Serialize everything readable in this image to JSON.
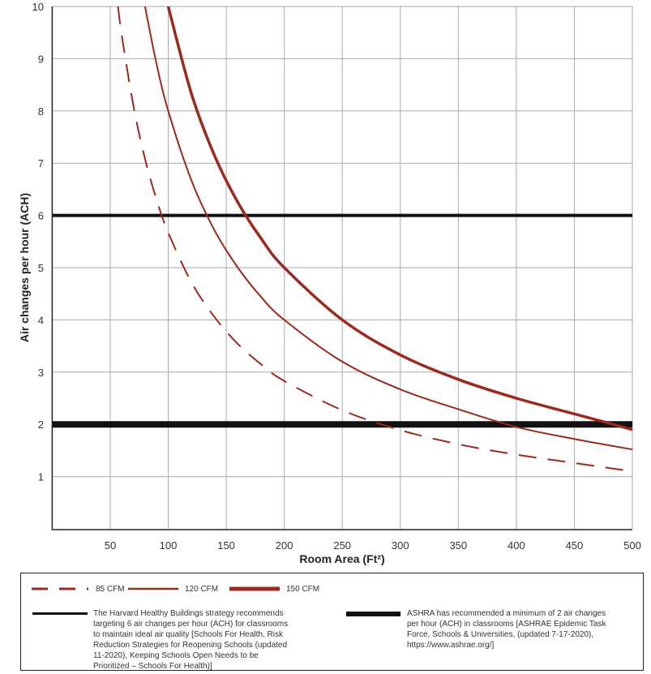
{
  "chart_data": {
    "type": "line",
    "xlabel": "Room Area (Ft²)",
    "ylabel": "Air changes per hour (ACH)",
    "xlim": [
      0,
      500
    ],
    "ylim": [
      0,
      10
    ],
    "xticks": [
      50,
      100,
      150,
      200,
      250,
      300,
      350,
      400,
      450,
      500
    ],
    "yticks": [
      1,
      2,
      3,
      4,
      5,
      6,
      7,
      8,
      9,
      10
    ],
    "grid": true,
    "series": [
      {
        "name": "85 CFM",
        "style": "dashed",
        "color": "#9b2a1e",
        "x": [
          56.7,
          60,
          70,
          80,
          90,
          100,
          120,
          140,
          160,
          180,
          200,
          250,
          300,
          350,
          400,
          450,
          500
        ],
        "y": [
          10,
          9.44,
          8.1,
          7.08,
          6.3,
          5.67,
          4.72,
          4.05,
          3.54,
          3.15,
          2.83,
          2.27,
          1.89,
          1.62,
          1.42,
          1.26,
          1.1
        ]
      },
      {
        "name": "120 CFM",
        "style": "thin",
        "color": "#9b2a1e",
        "x": [
          80,
          90,
          100,
          120,
          140,
          160,
          180,
          200,
          250,
          300,
          350,
          400,
          450,
          500
        ],
        "y": [
          10,
          8.89,
          8,
          6.67,
          5.71,
          5,
          4.44,
          4,
          3.2,
          2.67,
          2.29,
          1.95,
          1.72,
          1.52
        ]
      },
      {
        "name": "150 CFM",
        "style": "thick",
        "color": "#9b2a1e",
        "x": [
          100,
          120,
          140,
          160,
          180,
          200,
          250,
          300,
          350,
          400,
          450,
          500
        ],
        "y": [
          10,
          8.33,
          7.14,
          6.25,
          5.56,
          5,
          4,
          3.33,
          2.86,
          2.5,
          2.2,
          1.9
        ]
      }
    ],
    "reference_lines": [
      {
        "y": 6,
        "color": "#111111",
        "weight": "medium",
        "text": "The Harvard Healthy Buildings strategy recommends targeting 6 air changes per hour (ACH) for classrooms to maintain ideal air quality [Schools For Health, Risk Reduction Strategies for Reopening Schools (updated 11-2020), Keeping Schools Open Needs to be Prioritized – Schools For Health)]"
      },
      {
        "y": 2,
        "color": "#111111",
        "weight": "heavy",
        "text": "ASHRA has recommended a minimum of 2 air changes per hour (ACH) in classrooms [ASHRAE Epidemic Task Force, Schools & Universities, (updated 7-17-2020), https://www.ashrae.org/]"
      }
    ],
    "legend": "bottom"
  }
}
